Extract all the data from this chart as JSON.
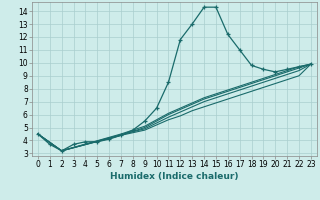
{
  "xlabel": "Humidex (Indice chaleur)",
  "bg_color": "#ceecea",
  "grid_color": "#aacece",
  "line_color": "#1a6b6b",
  "xlim": [
    -0.5,
    23.5
  ],
  "ylim": [
    2.8,
    14.7
  ],
  "xticks": [
    0,
    1,
    2,
    3,
    4,
    5,
    6,
    7,
    8,
    9,
    10,
    11,
    12,
    13,
    14,
    15,
    16,
    17,
    18,
    19,
    20,
    21,
    22,
    23
  ],
  "yticks": [
    3,
    4,
    5,
    6,
    7,
    8,
    9,
    10,
    11,
    12,
    13,
    14
  ],
  "series": [
    {
      "x": [
        0,
        1,
        2,
        3,
        4,
        5,
        6,
        7,
        8,
        9,
        10,
        11,
        12,
        13,
        14,
        15,
        16,
        17,
        18,
        19,
        20,
        21,
        22,
        23
      ],
      "y": [
        4.5,
        3.7,
        3.2,
        3.7,
        3.9,
        3.9,
        4.1,
        4.4,
        4.8,
        5.5,
        6.5,
        8.5,
        11.8,
        13.0,
        14.3,
        14.3,
        12.2,
        11.0,
        9.8,
        9.5,
        9.3,
        9.5,
        9.7,
        9.9
      ],
      "marker": "+",
      "lw": 0.9
    },
    {
      "x": [
        0,
        2,
        7,
        9,
        10,
        11,
        12,
        13,
        14,
        15,
        16,
        17,
        18,
        19,
        20,
        21,
        22,
        23
      ],
      "y": [
        4.5,
        3.2,
        4.4,
        5.0,
        5.5,
        6.0,
        6.4,
        6.8,
        7.2,
        7.5,
        7.8,
        8.1,
        8.4,
        8.7,
        9.0,
        9.3,
        9.6,
        9.9
      ],
      "marker": null,
      "lw": 0.8
    },
    {
      "x": [
        0,
        2,
        7,
        9,
        10,
        11,
        12,
        13,
        14,
        15,
        16,
        17,
        18,
        19,
        20,
        21,
        22,
        23
      ],
      "y": [
        4.5,
        3.2,
        4.4,
        4.8,
        5.2,
        5.6,
        5.9,
        6.3,
        6.6,
        6.9,
        7.2,
        7.5,
        7.8,
        8.1,
        8.4,
        8.7,
        9.0,
        9.9
      ],
      "marker": null,
      "lw": 0.8
    },
    {
      "x": [
        0,
        2,
        7,
        9,
        10,
        11,
        12,
        13,
        14,
        15,
        16,
        17,
        18,
        19,
        20,
        21,
        22,
        23
      ],
      "y": [
        4.5,
        3.2,
        4.5,
        5.1,
        5.6,
        6.1,
        6.5,
        6.9,
        7.3,
        7.6,
        7.9,
        8.2,
        8.5,
        8.8,
        9.1,
        9.4,
        9.7,
        9.9
      ],
      "marker": null,
      "lw": 0.8
    },
    {
      "x": [
        0,
        2,
        7,
        9,
        10,
        11,
        12,
        13,
        14,
        15,
        16,
        17,
        18,
        19,
        20,
        21,
        22,
        23
      ],
      "y": [
        4.5,
        3.2,
        4.45,
        4.9,
        5.35,
        5.8,
        6.2,
        6.6,
        7.0,
        7.3,
        7.6,
        7.9,
        8.2,
        8.5,
        8.8,
        9.1,
        9.4,
        9.9
      ],
      "marker": null,
      "lw": 0.8
    }
  ],
  "tick_fontsize": 5.5,
  "label_fontsize": 6.5
}
